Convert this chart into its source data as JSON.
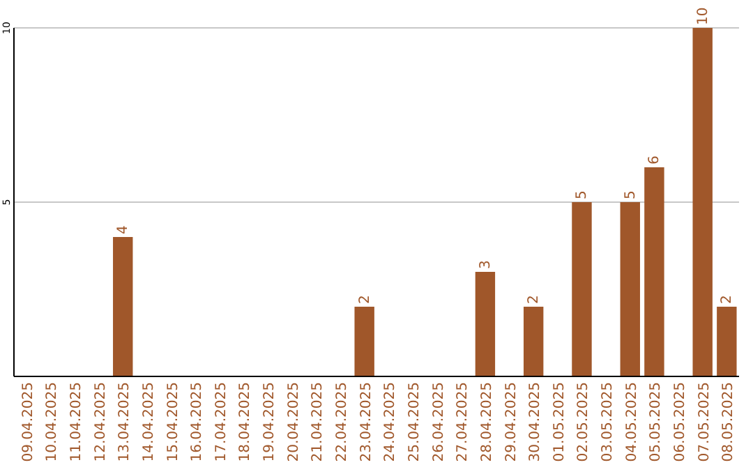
{
  "chart_data": {
    "type": "bar",
    "categories": [
      "09.04.2025",
      "10.04.2025",
      "11.04.2025",
      "12.04.2025",
      "13.04.2025",
      "14.04.2025",
      "15.04.2025",
      "16.04.2025",
      "17.04.2025",
      "18.04.2025",
      "19.04.2025",
      "20.04.2025",
      "21.04.2025",
      "22.04.2025",
      "23.04.2025",
      "24.04.2025",
      "25.04.2025",
      "26.04.2025",
      "27.04.2025",
      "28.04.2025",
      "29.04.2025",
      "30.04.2025",
      "01.05.2025",
      "02.05.2025",
      "03.05.2025",
      "04.05.2025",
      "05.05.2025",
      "06.05.2025",
      "07.05.2025",
      "08.05.2025"
    ],
    "values": [
      null,
      null,
      null,
      null,
      4,
      null,
      null,
      null,
      null,
      null,
      null,
      null,
      null,
      null,
      2,
      null,
      null,
      null,
      null,
      3,
      null,
      2,
      null,
      5,
      null,
      5,
      6,
      null,
      10,
      2
    ],
    "color": "#a0572a",
    "ylim": [
      0,
      10
    ],
    "yticks": [
      5,
      10
    ],
    "grid": "y",
    "data_labels": true
  }
}
